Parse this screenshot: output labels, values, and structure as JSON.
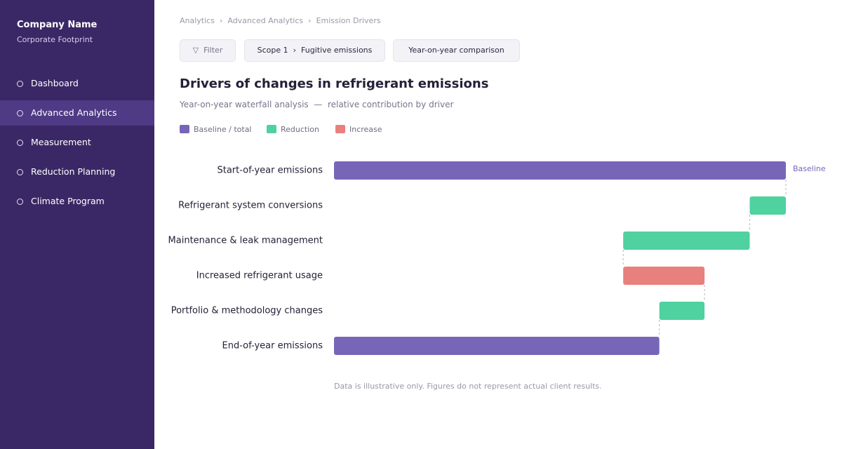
{
  "sidebar": {
    "company": "Company Name",
    "subtitle": "Corporate Footprint",
    "nav": [
      "Dashboard",
      "Advanced Analytics",
      "Measurement",
      "Reduction Planning",
      "Climate Program"
    ],
    "active": 1
  },
  "breadcrumb": [
    "Analytics",
    "Advanced Analytics",
    "Emission Drivers"
  ],
  "filters": {
    "filter": "Filter",
    "scope": [
      "Scope 1",
      "Fugitive emissions"
    ],
    "comparison": "Year-on-year comparison"
  },
  "chart_data": {
    "type": "waterfall",
    "orientation": "horizontal",
    "title": "Drivers of changes in refrigerant emissions",
    "subtitle": "Year-on-year waterfall analysis  —  relative contribution by driver",
    "legend": [
      {
        "name": "Baseline / total",
        "color": "#7766b8"
      },
      {
        "name": "Reduction",
        "color": "#4fd1a0"
      },
      {
        "name": "Increase",
        "color": "#e8807e"
      }
    ],
    "categories": [
      "Start-of-year emissions",
      "Refrigerant system conversions",
      "Maintenance & leak management",
      "Increased refrigerant usage",
      "Portfolio & methodology changes",
      "End-of-year emissions"
    ],
    "values": [
      100,
      -8,
      -28,
      18,
      -10,
      72
    ],
    "measures": [
      "total",
      "relative",
      "relative",
      "relative",
      "relative",
      "total"
    ],
    "xlim": [
      0,
      100
    ],
    "annotation": "Baseline",
    "footnote": "Data is illustrative only. Figures do not represent actual client results."
  }
}
